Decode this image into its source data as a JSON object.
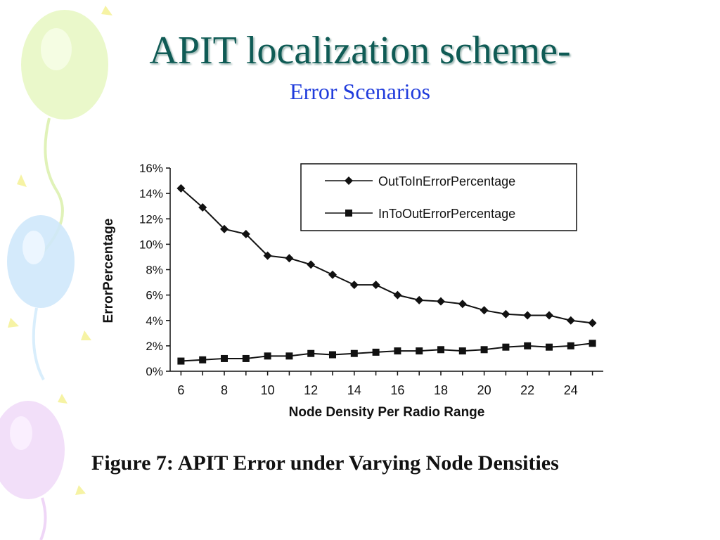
{
  "slide": {
    "title": "APIT localization scheme-",
    "subtitle": "Error Scenarios",
    "caption": "Figure 7: APIT Error under Varying Node Densities"
  },
  "colors": {
    "title": "#0f5b55",
    "subtitle": "#1f3bdc",
    "chart_ink": "#111111"
  },
  "chart_data": {
    "type": "line",
    "title": "",
    "xlabel": "Node Density Per Radio Range",
    "ylabel": "ErrorPercentage",
    "x": [
      6,
      7,
      8,
      9,
      10,
      11,
      12,
      13,
      14,
      15,
      16,
      17,
      18,
      19,
      20,
      21,
      22,
      23,
      24,
      25
    ],
    "xticks": [
      6,
      8,
      10,
      12,
      14,
      16,
      18,
      20,
      22,
      24
    ],
    "xlim": [
      5.5,
      25.5
    ],
    "ylim": [
      0,
      16
    ],
    "yticks": [
      0,
      2,
      4,
      6,
      8,
      10,
      12,
      14,
      16
    ],
    "ytick_labels": [
      "0%",
      "2%",
      "4%",
      "6%",
      "8%",
      "10%",
      "12%",
      "14%",
      "16%"
    ],
    "grid": false,
    "legend_position": "top-right",
    "series": [
      {
        "name": "OutToInErrorPercentage",
        "marker": "diamond",
        "values": [
          14.4,
          12.9,
          11.2,
          10.8,
          9.1,
          8.9,
          8.4,
          7.6,
          6.8,
          6.8,
          6.0,
          5.6,
          5.5,
          5.3,
          4.8,
          4.5,
          4.4,
          4.4,
          4.0,
          3.8
        ]
      },
      {
        "name": "InToOutErrorPercentage",
        "marker": "square",
        "values": [
          0.8,
          0.9,
          1.0,
          1.0,
          1.2,
          1.2,
          1.4,
          1.3,
          1.4,
          1.5,
          1.6,
          1.6,
          1.7,
          1.6,
          1.7,
          1.9,
          2.0,
          1.9,
          2.0,
          2.2
        ]
      }
    ]
  }
}
